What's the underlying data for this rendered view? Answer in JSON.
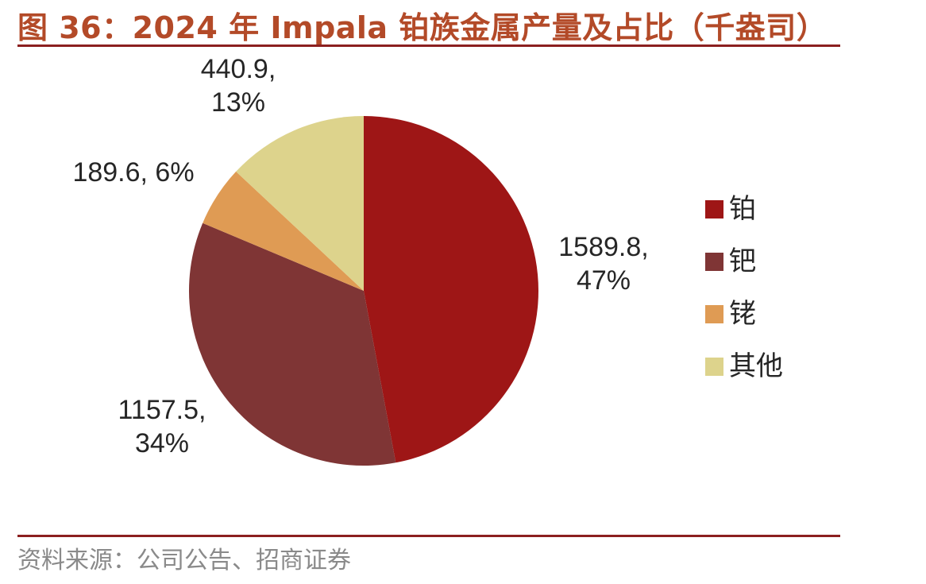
{
  "figure": {
    "title": "图 36：2024 年 Impala 铂族金属产量及占比（千盎司）",
    "source": "资料来源：公司公告、招商证券"
  },
  "colors": {
    "accent": "#b34a28",
    "rule": "#8b1f1f",
    "source_text": "#8a8a8a",
    "label_text": "#262626"
  },
  "chart_data": {
    "type": "pie",
    "title": "2024 年 Impala 铂族金属产量及占比（千盎司）",
    "unit": "千盎司",
    "slices": [
      {
        "name": "铂",
        "value": 1589.8,
        "percent": "47%",
        "color": "#9e1616",
        "label_lines": [
          "1589.8,",
          "47%"
        ]
      },
      {
        "name": "钯",
        "value": 1157.5,
        "percent": "34%",
        "color": "#7f3535",
        "label_lines": [
          "1157.5,",
          "34%"
        ]
      },
      {
        "name": "铑",
        "value": 189.6,
        "percent": "6%",
        "color": "#df9b54",
        "label_lines": [
          "189.6, 6%"
        ]
      },
      {
        "name": "其他",
        "value": 440.9,
        "percent": "13%",
        "color": "#ddd38c",
        "label_lines": [
          "440.9,",
          "13%"
        ]
      }
    ],
    "legend": [
      "铂",
      "钯",
      "铑",
      "其他"
    ],
    "legend_position": "right",
    "start_angle": "12 o'clock",
    "direction": "clockwise"
  }
}
